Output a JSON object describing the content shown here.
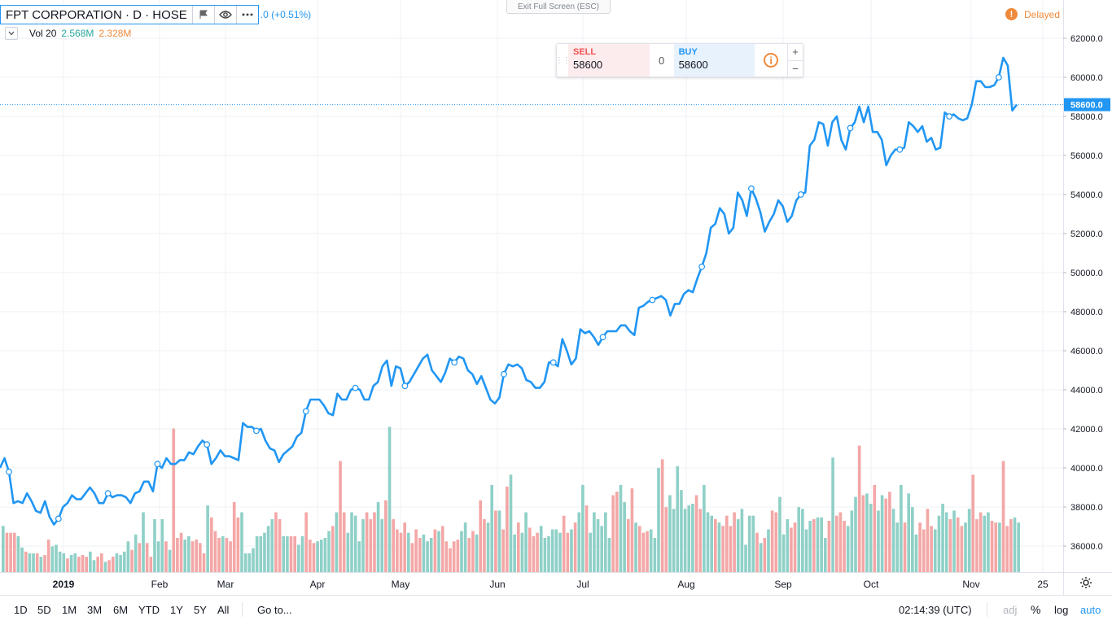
{
  "legend": {
    "title": "FPT CORPORATION · D · HOSE",
    "change": ".0 (+0.51%)",
    "flag_icon": "flag-icon",
    "eye_icon": "eye-icon",
    "more_icon": "more-icon",
    "volume": {
      "label": "Vol 20",
      "value_a": "2.568M",
      "value_b": "2.328M"
    }
  },
  "exit_fullscreen": "Exit Full Screen (ESC)",
  "delayed": {
    "icon": "!",
    "label": "Delayed"
  },
  "trade": {
    "sell_label": "SELL",
    "sell_value": "58600",
    "spread": "0",
    "buy_label": "BUY",
    "buy_value": "58600",
    "info_icon": "i",
    "plus": "+",
    "minus": "−"
  },
  "price_scale": {
    "ticks": [
      "62000.0",
      "60000.0",
      "58000.0",
      "56000.0",
      "54000.0",
      "52000.0",
      "50000.0",
      "48000.0",
      "46000.0",
      "44000.0",
      "42000.0",
      "40000.0",
      "38000.0",
      "36000.0"
    ],
    "current_label": "58600.0"
  },
  "time_axis": {
    "labels": [
      "2019",
      "Feb",
      "Mar",
      "Apr",
      "May",
      "Jun",
      "Jul",
      "Aug",
      "Sep",
      "Oct",
      "Nov",
      "25"
    ]
  },
  "bottom_bar": {
    "ranges": [
      "1D",
      "5D",
      "1M",
      "3M",
      "6M",
      "YTD",
      "1Y",
      "5Y",
      "All"
    ],
    "goto": "Go to...",
    "clock": "02:14:39 (UTC)",
    "adj": "adj",
    "percent": "%",
    "log": "log",
    "auto": "auto"
  },
  "colors": {
    "line": "#2196f3",
    "vol_up": "#26a69a",
    "vol_down": "#ef5350",
    "accent": "#2196f3",
    "warn": "#ef8a3c"
  },
  "chart_data": {
    "type": "line",
    "y_unit": "price",
    "ylim": [
      35000,
      62700
    ],
    "current_price": 58600,
    "series": [
      {
        "values": [
          40000,
          40500,
          39800,
          38200,
          38300,
          38200,
          38700,
          38300,
          37800,
          37700,
          38300,
          37500,
          37100,
          37400,
          38000,
          38200,
          38600,
          38400,
          38400,
          38700,
          39000,
          38700,
          38200,
          38200,
          38700,
          38500,
          38600,
          38600,
          38500,
          38200,
          38700,
          38800,
          39300,
          39300,
          38800,
          40200,
          40000,
          40500,
          40200,
          40200,
          40400,
          40400,
          40800,
          40700,
          41100,
          41400,
          41200,
          40200,
          40500,
          40900,
          40600,
          40600,
          40500,
          40400,
          42300,
          42100,
          42100,
          41900,
          42000,
          41400,
          41000,
          40900,
          40300,
          40700,
          40900,
          41100,
          41600,
          41800,
          42900,
          43500,
          43500,
          43500,
          43200,
          42800,
          42700,
          43800,
          43500,
          43500,
          44000,
          44100,
          44000,
          43500,
          43500,
          44200,
          44400,
          45200,
          45500,
          44200,
          45200,
          45100,
          44200,
          44400,
          44800,
          45200,
          45600,
          45800,
          45000,
          44700,
          44400,
          44900,
          45600,
          45400,
          45700,
          45600,
          45000,
          44800,
          44300,
          44700,
          44100,
          43500,
          43300,
          43600,
          44800,
          45300,
          45200,
          45300,
          45100,
          44500,
          44400,
          44100,
          44100,
          44400,
          45400,
          45400,
          45200,
          46600,
          46000,
          45300,
          45600,
          47100,
          46900,
          47000,
          46700,
          46300,
          46700,
          47000,
          47000,
          47000,
          47300,
          47300,
          47000,
          46800,
          48200,
          48300,
          48500,
          48600,
          48700,
          48800,
          48600,
          47800,
          48400,
          48400,
          48900,
          49100,
          49000,
          49700,
          50300,
          51000,
          52300,
          52500,
          53300,
          53000,
          52000,
          52300,
          54100,
          53700,
          52900,
          54300,
          53800,
          53100,
          52100,
          52600,
          53000,
          53700,
          53400,
          52600,
          52900,
          53700,
          54000,
          54100,
          56500,
          56800,
          57700,
          57600,
          56500,
          57700,
          58000,
          56800,
          56300,
          57400,
          57700,
          58500,
          57700,
          58500,
          57200,
          57200,
          56800,
          55500,
          56000,
          56300,
          56300,
          56400,
          57700,
          57500,
          57200,
          57500,
          56700,
          56900,
          56300,
          56400,
          58200,
          58000,
          58100,
          57900,
          57800,
          57900,
          58600,
          59800,
          59800,
          59500,
          59500,
          59600,
          60000,
          61000,
          60600,
          58300,
          58600
        ]
      }
    ],
    "volume": {
      "values": [
        1.35,
        1.15,
        1.15,
        1.15,
        1.05,
        0.72,
        0.6,
        0.55,
        0.55,
        0.55,
        0.45,
        0.5,
        0.95,
        0.75,
        0.8,
        0.6,
        0.55,
        0.4,
        0.5,
        0.55,
        0.45,
        0.5,
        0.45,
        0.6,
        0.35,
        0.45,
        0.55,
        0.3,
        0.35,
        0.45,
        0.55,
        0.5,
        0.6,
        0.9,
        0.65,
        1.1,
        0.85,
        1.75,
        0.85,
        0.45,
        1.55,
        0.9,
        1.55,
        0.9,
        0.65,
        4.2,
        1.0,
        1.15,
        0.95,
        1.05,
        0.9,
        0.95,
        0.85,
        0.55,
        1.95,
        1.6,
        1.2,
        1.0,
        1.05,
        1.0,
        0.9,
        2.05,
        1.6,
        1.75,
        0.55,
        0.55,
        0.7,
        1.05,
        1.05,
        1.15,
        1.35,
        1.55,
        1.75,
        1.55,
        1.05,
        1.05,
        1.05,
        1.05,
        0.8,
        1.05,
        1.75,
        0.95,
        0.85,
        0.9,
        0.95,
        1.0,
        1.2,
        1.35,
        1.75,
        3.25,
        1.75,
        1.15,
        1.75,
        1.65,
        0.9,
        1.55,
        1.75,
        1.55,
        1.75,
        2.05,
        1.55,
        2.1,
        4.25,
        1.55,
        1.25,
        1.15,
        1.45,
        1.15,
        0.85,
        1.25,
        1.0,
        1.1,
        0.9,
        1.0,
        1.25,
        1.2,
        1.35,
        0.9,
        0.7,
        0.9,
        0.95,
        1.2,
        1.45,
        1.0,
        1.2,
        1.1,
        2.1,
        1.55,
        1.45,
        2.55,
        1.8,
        1.8,
        1.25,
        2.5,
        2.85,
        1.1,
        1.45,
        1.15,
        1.75,
        1.3,
        1.05,
        1.15,
        1.35,
        1.0,
        1.05,
        1.25,
        1.25,
        1.15,
        1.65,
        1.15,
        1.25,
        1.45,
        1.75,
        2.55,
        1.95,
        1.15,
        1.75,
        1.55,
        1.35,
        1.75,
        1.0,
        2.25,
        2.35,
        2.55,
        2.05,
        1.55,
        2.45,
        1.45,
        1.35,
        1.15,
        1.2,
        1.25,
        1.0,
        3.05,
        3.3,
        1.9,
        2.25,
        1.85,
        3.1,
        2.4,
        1.85,
        1.95,
        2.0,
        2.25,
        1.85,
        2.55,
        1.75,
        1.65,
        1.55,
        1.45,
        1.35,
        1.65,
        1.35,
        1.75,
        1.55,
        1.85,
        0.8,
        1.65,
        1.65,
        1.15,
        0.85,
        1.0,
        1.25,
        1.8,
        1.75,
        2.2,
        1.1,
        1.55,
        1.3,
        1.45,
        1.9,
        1.85,
        1.25,
        1.5,
        1.55,
        1.6,
        1.6,
        1.0,
        1.5,
        3.35,
        1.65,
        1.75,
        1.5,
        1.35,
        1.8,
        2.2,
        3.7,
        2.25,
        2.3,
        2.0,
        2.55,
        1.8,
        2.25,
        2.15,
        2.35,
        1.85,
        1.45,
        2.55,
        1.45,
        2.3,
        1.9,
        1.1,
        1.45,
        1.25,
        1.85,
        1.35,
        1.25,
        1.65,
        2.0,
        1.75,
        1.55,
        1.8,
        1.6,
        1.35,
        1.45,
        1.85,
        2.85,
        1.55,
        1.75,
        1.65,
        1.75,
        1.5,
        1.45,
        1.45,
        3.25,
        1.35,
        1.55,
        1.6,
        1.45
      ],
      "up": [
        true,
        false,
        false,
        false,
        true,
        true,
        false,
        true,
        true,
        false,
        true,
        false,
        false,
        true,
        true,
        true,
        true,
        false,
        true,
        true,
        false,
        false,
        false,
        true,
        true,
        false,
        false,
        true,
        false,
        false,
        true,
        true,
        true,
        true,
        false,
        true,
        false,
        true,
        false,
        false,
        true,
        true,
        true,
        false,
        true,
        false,
        false,
        false,
        true,
        true,
        false,
        false,
        false,
        false,
        true,
        false,
        false,
        false,
        true,
        false,
        false,
        false,
        false,
        true,
        true,
        true,
        true,
        true,
        true,
        true,
        true,
        true,
        false,
        false,
        true,
        true,
        false,
        false,
        true,
        true,
        false,
        false,
        false,
        true,
        true,
        true,
        true,
        false,
        true,
        false,
        false,
        true,
        true,
        true,
        true,
        true,
        false,
        false,
        false,
        true,
        true,
        false,
        true,
        false,
        false,
        false,
        false,
        true,
        false,
        false,
        false,
        true,
        true,
        true,
        false,
        true,
        false,
        false,
        false,
        false,
        false,
        true,
        true,
        false,
        false,
        true,
        false,
        false,
        true,
        true,
        false,
        true,
        false,
        false,
        true,
        true,
        false,
        true,
        true,
        false,
        false,
        false,
        true,
        true,
        true,
        true,
        true,
        true,
        false,
        false,
        true,
        false,
        true,
        true,
        false,
        true,
        true,
        true,
        true,
        true,
        true,
        false,
        false,
        true,
        true,
        false,
        false,
        true,
        false,
        false,
        false,
        true,
        true,
        true,
        false,
        false,
        true,
        true,
        true,
        true,
        true,
        true,
        true,
        false,
        false,
        true,
        true,
        true,
        false,
        true,
        false,
        false,
        false,
        false,
        true,
        true,
        true,
        true,
        true,
        false,
        true,
        false,
        true,
        false,
        false,
        true,
        true,
        true,
        false,
        false,
        true,
        true,
        true,
        true,
        false,
        true,
        true,
        true,
        false,
        true,
        false,
        false,
        false,
        true,
        true,
        true,
        false,
        false,
        true,
        true,
        false,
        true,
        true,
        false,
        false,
        true,
        true,
        true,
        false,
        true,
        true,
        true,
        false,
        false,
        false,
        false,
        true,
        true,
        true,
        true,
        false,
        true,
        false,
        false,
        true,
        true,
        false,
        false,
        false,
        true,
        true,
        false,
        false,
        true,
        false,
        false,
        false,
        true,
        true,
        true,
        false,
        false,
        false,
        false,
        true,
        true
      ]
    }
  }
}
